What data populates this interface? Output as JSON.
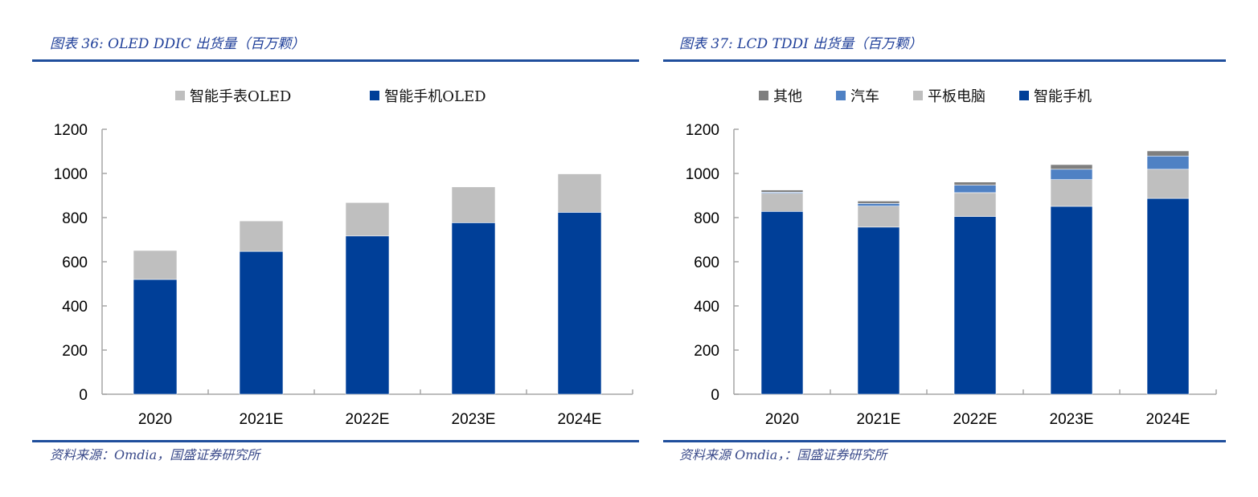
{
  "left": {
    "fig_label": "图表 36:",
    "title": "OLED DDIC 出货量（百万颗）",
    "source": "资料来源：Omdia，国盛证券研究所"
  },
  "right": {
    "fig_label": "图表 37:",
    "title": "LCD TDDI 出货量（百万颗）",
    "source": "资料来源 Omdia，：国盛证券研究所"
  },
  "colors": {
    "smartphone": "#003f98",
    "watch_or_tablet": "#bfbfbf",
    "auto": "#4f81c4",
    "other": "#7f7f7f",
    "rule": "#1f4e9c"
  },
  "chart_data": [
    {
      "type": "bar",
      "stacked": true,
      "title": "OLED DDIC 出货量（百万颗）",
      "categories": [
        "2020",
        "2021E",
        "2022E",
        "2023E",
        "2024E"
      ],
      "series": [
        {
          "name": "智能手机OLED",
          "values": [
            520,
            647,
            717,
            777,
            824
          ]
        },
        {
          "name": "智能手表OLED",
          "values": [
            131,
            138,
            151,
            162,
            174
          ]
        }
      ],
      "legend_order": [
        "智能手表OLED",
        "智能手机OLED"
      ],
      "yticks": [
        "0",
        "200",
        "400",
        "600",
        "800",
        "1000",
        "1200"
      ],
      "ylim": [
        0,
        1200
      ],
      "xlabel": "",
      "ylabel": "",
      "grid": false,
      "legend_position": "top"
    },
    {
      "type": "bar",
      "stacked": true,
      "title": "LCD TDDI 出货量（百万颗）",
      "categories": [
        "2020",
        "2021E",
        "2022E",
        "2023E",
        "2024E"
      ],
      "series": [
        {
          "name": "智能手机",
          "values": [
            828,
            757,
            805,
            851,
            887
          ]
        },
        {
          "name": "平板电脑",
          "values": [
            82,
            95,
            108,
            121,
            132
          ]
        },
        {
          "name": "汽车",
          "values": [
            5,
            12,
            34,
            47,
            60
          ]
        },
        {
          "name": "其他",
          "values": [
            10,
            11,
            14,
            21,
            23
          ]
        }
      ],
      "legend_order": [
        "其他",
        "汽车",
        "平板电脑",
        "智能手机"
      ],
      "yticks": [
        "0",
        "200",
        "400",
        "600",
        "800",
        "1000",
        "1200"
      ],
      "ylim": [
        0,
        1200
      ],
      "xlabel": "",
      "ylabel": "",
      "grid": false,
      "legend_position": "top"
    }
  ]
}
